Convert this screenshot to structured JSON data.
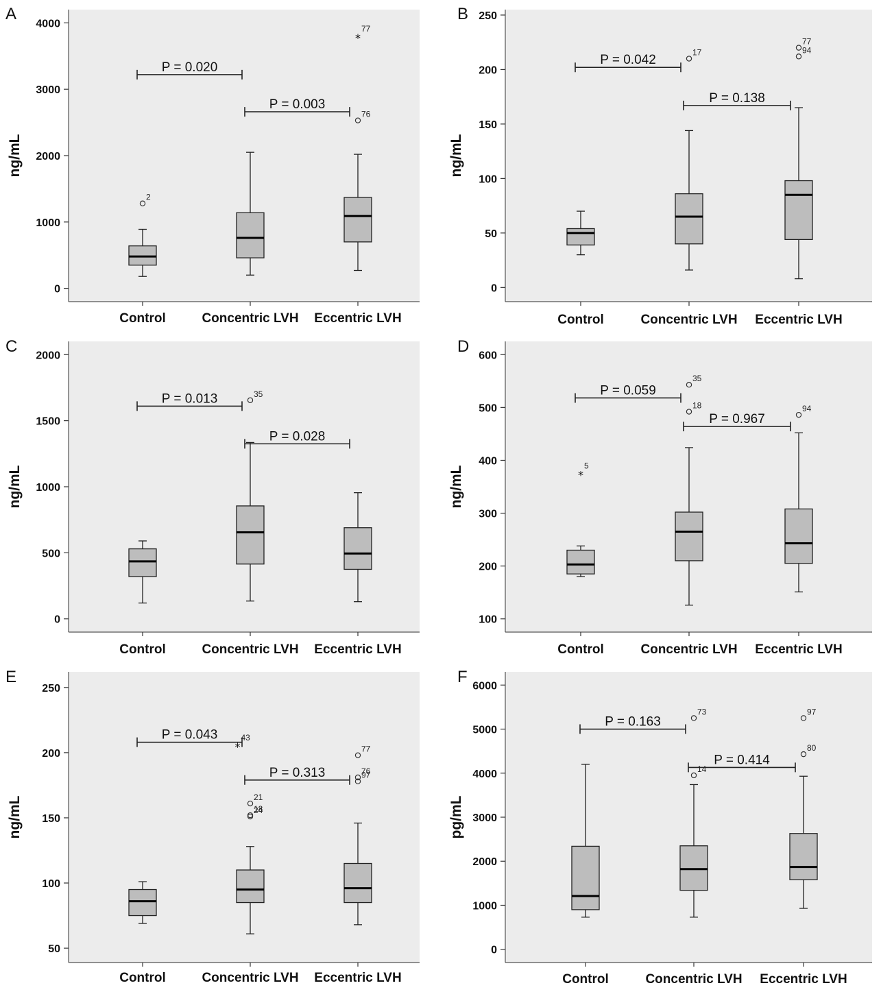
{
  "chart_data": [
    {
      "panel": "A",
      "type": "box",
      "ylabel": "ng/mL",
      "ylim": [
        -200,
        4200
      ],
      "yticks": [
        0,
        1000,
        2000,
        3000,
        4000
      ],
      "categories": [
        "Control",
        "Concentric LVH",
        "Eccentric LVH"
      ],
      "boxes": [
        {
          "whisker_low": 180,
          "q1": 350,
          "median": 480,
          "q3": 640,
          "whisker_high": 890,
          "outliers": [
            {
              "value": 1280,
              "label": "2",
              "marker": "circle"
            }
          ]
        },
        {
          "whisker_low": 200,
          "q1": 460,
          "median": 760,
          "q3": 1140,
          "whisker_high": 2050,
          "outliers": []
        },
        {
          "whisker_low": 270,
          "q1": 700,
          "median": 1090,
          "q3": 1370,
          "whisker_high": 2020,
          "outliers": [
            {
              "value": 2530,
              "label": "76",
              "marker": "circle"
            },
            {
              "value": 3820,
              "label": "77",
              "marker": "star"
            }
          ]
        }
      ],
      "comparisons": [
        {
          "from": 0,
          "to": 1,
          "y": 3220,
          "label": "P = 0.020"
        },
        {
          "from": 1,
          "to": 2,
          "y": 2660,
          "label": "P = 0.003"
        }
      ]
    },
    {
      "panel": "B",
      "type": "box",
      "ylabel": "ng/mL",
      "ylim": [
        -13,
        255
      ],
      "yticks": [
        0,
        50,
        100,
        150,
        200,
        250
      ],
      "categories": [
        "Control",
        "Concentric LVH",
        "Eccentric LVH"
      ],
      "boxes": [
        {
          "whisker_low": 30,
          "q1": 39,
          "median": 50,
          "q3": 54,
          "whisker_high": 70,
          "outliers": []
        },
        {
          "whisker_low": 16,
          "q1": 40,
          "median": 65,
          "q3": 86,
          "whisker_high": 144,
          "outliers": [
            {
              "value": 210,
              "label": "17",
              "marker": "circle"
            }
          ]
        },
        {
          "whisker_low": 8,
          "q1": 44,
          "median": 85,
          "q3": 98,
          "whisker_high": 165,
          "outliers": [
            {
              "value": 220,
              "label": "77",
              "marker": "circle"
            },
            {
              "value": 212,
              "label": "94",
              "marker": "circle"
            }
          ]
        }
      ],
      "comparisons": [
        {
          "from": 0,
          "to": 1,
          "y": 202,
          "label": "P = 0.042"
        },
        {
          "from": 1,
          "to": 2,
          "y": 167,
          "label": "P = 0.138"
        }
      ]
    },
    {
      "panel": "C",
      "type": "box",
      "ylabel": "ng/mL",
      "ylim": [
        -100,
        2100
      ],
      "yticks": [
        0,
        500,
        1000,
        1500,
        2000
      ],
      "categories": [
        "Control",
        "Concentric LVH",
        "Eccentric LVH"
      ],
      "boxes": [
        {
          "whisker_low": 120,
          "q1": 320,
          "median": 435,
          "q3": 530,
          "whisker_high": 590,
          "outliers": []
        },
        {
          "whisker_low": 135,
          "q1": 415,
          "median": 655,
          "q3": 855,
          "whisker_high": 1335,
          "outliers": [
            {
              "value": 1655,
              "label": "35",
              "marker": "circle"
            }
          ]
        },
        {
          "whisker_low": 130,
          "q1": 375,
          "median": 495,
          "q3": 690,
          "whisker_high": 955,
          "outliers": []
        }
      ],
      "comparisons": [
        {
          "from": 0,
          "to": 1,
          "y": 1610,
          "label": "P = 0.013"
        },
        {
          "from": 1,
          "to": 2,
          "y": 1325,
          "label": "P = 0.028"
        }
      ]
    },
    {
      "panel": "D",
      "type": "box",
      "ylabel": "ng/mL",
      "ylim": [
        75,
        625
      ],
      "yticks": [
        100,
        200,
        300,
        400,
        500,
        600
      ],
      "categories": [
        "Control",
        "Concentric LVH",
        "Eccentric LVH"
      ],
      "boxes": [
        {
          "whisker_low": 180,
          "q1": 185,
          "median": 203,
          "q3": 230,
          "whisker_high": 238,
          "outliers": [
            {
              "value": 378,
              "label": "5",
              "marker": "star"
            }
          ]
        },
        {
          "whisker_low": 126,
          "q1": 210,
          "median": 265,
          "q3": 302,
          "whisker_high": 424,
          "outliers": [
            {
              "value": 543,
              "label": "35",
              "marker": "circle"
            },
            {
              "value": 492,
              "label": "18",
              "marker": "circle"
            }
          ]
        },
        {
          "whisker_low": 151,
          "q1": 205,
          "median": 243,
          "q3": 308,
          "whisker_high": 452,
          "outliers": [
            {
              "value": 486,
              "label": "94",
              "marker": "circle"
            }
          ]
        }
      ],
      "comparisons": [
        {
          "from": 0,
          "to": 1,
          "y": 518,
          "label": "P = 0.059"
        },
        {
          "from": 1,
          "to": 2,
          "y": 464,
          "label": "P = 0.967"
        }
      ]
    },
    {
      "panel": "E",
      "type": "box",
      "ylabel": "ng/mL",
      "ylim": [
        39,
        262
      ],
      "yticks": [
        50,
        100,
        150,
        200,
        250
      ],
      "categories": [
        "Control",
        "Concentric LVH",
        "Eccentric LVH"
      ],
      "boxes": [
        {
          "whisker_low": 69,
          "q1": 75,
          "median": 86,
          "q3": 95,
          "whisker_high": 101,
          "outliers": []
        },
        {
          "whisker_low": 61,
          "q1": 85,
          "median": 95,
          "q3": 110,
          "whisker_high": 128,
          "outliers": [
            {
              "value": 161,
              "label": "21",
              "marker": "circle"
            },
            {
              "value": 152,
              "label": "18",
              "marker": "circle"
            },
            {
              "value": 151,
              "label": "24",
              "marker": "circle"
            }
          ]
        },
        {
          "whisker_low": 68,
          "q1": 85,
          "median": 96,
          "q3": 115,
          "whisker_high": 146,
          "outliers": [
            {
              "value": 198,
              "label": "77",
              "marker": "circle"
            },
            {
              "value": 181,
              "label": "76",
              "marker": "circle"
            },
            {
              "value": 178,
              "label": "97",
              "marker": "circle"
            }
          ]
        }
      ],
      "comparisons": [
        {
          "from": 0,
          "to": 1,
          "y": 208,
          "label": "P = 0.043",
          "extra": {
            "value": 209,
            "label": "43",
            "marker": "star"
          }
        },
        {
          "from": 1,
          "to": 2,
          "y": 179,
          "label": "P = 0.313"
        }
      ]
    },
    {
      "panel": "F",
      "type": "box",
      "ylabel": "pg/mL",
      "ylim": [
        -300,
        6300
      ],
      "yticks": [
        0,
        1000,
        2000,
        3000,
        4000,
        5000,
        6000
      ],
      "categories": [
        "Control",
        "Concentric LVH",
        "Eccentric LVH"
      ],
      "boxes": [
        {
          "whisker_low": 730,
          "q1": 900,
          "median": 1210,
          "q3": 2340,
          "whisker_high": 4200,
          "outliers": []
        },
        {
          "whisker_low": 730,
          "q1": 1340,
          "median": 1820,
          "q3": 2350,
          "whisker_high": 3740,
          "outliers": [
            {
              "value": 5250,
              "label": "73",
              "marker": "circle"
            },
            {
              "value": 3950,
              "label": "14",
              "marker": "circle"
            }
          ]
        },
        {
          "whisker_low": 930,
          "q1": 1580,
          "median": 1870,
          "q3": 2630,
          "whisker_high": 3930,
          "outliers": [
            {
              "value": 5250,
              "label": "97",
              "marker": "circle"
            },
            {
              "value": 4430,
              "label": "80",
              "marker": "circle"
            }
          ]
        }
      ],
      "comparisons": [
        {
          "from": 0,
          "to": 1,
          "y": 5000,
          "label": "P = 0.163"
        },
        {
          "from": 1,
          "to": 2,
          "y": 4130,
          "label": "P = 0.414"
        }
      ]
    }
  ]
}
